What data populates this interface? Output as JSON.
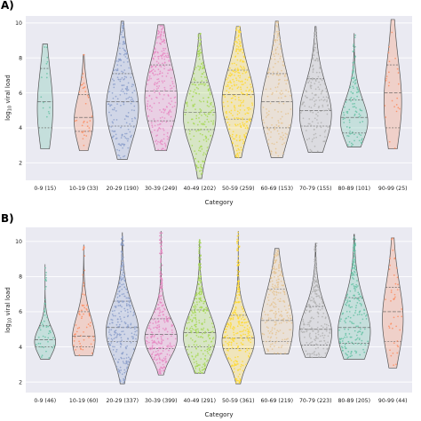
{
  "chart_data": [
    {
      "panel": "A)",
      "type": "violin",
      "xlabel": "Category",
      "ylabel": "log10 viral load",
      "ylim": [
        1,
        10.4
      ],
      "yticks": [
        2,
        4,
        6,
        8,
        10
      ],
      "grid": true,
      "categories": [
        "0-9 (15)",
        "10-19 (33)",
        "20-29 (190)",
        "30-39 (249)",
        "40-49 (202)",
        "50-59 (259)",
        "60-69 (153)",
        "70-79 (155)",
        "80-89 (101)",
        "90-99 (25)"
      ],
      "colors": [
        "#66c2a5",
        "#fc8d62",
        "#8da0cb",
        "#e78ac3",
        "#a6d854",
        "#ffd92f",
        "#e5c494",
        "#b3b3b3",
        "#66c2a5",
        "#fc8d62"
      ],
      "series": [
        {
          "min": 2.8,
          "max": 8.8,
          "q1": 4.0,
          "median": 5.5,
          "q3": 7.4,
          "n": 15
        },
        {
          "min": 2.7,
          "max": 8.2,
          "q1": 3.8,
          "median": 4.6,
          "q3": 5.9,
          "n": 33
        },
        {
          "min": 2.2,
          "max": 10.1,
          "q1": 4.1,
          "median": 5.5,
          "q3": 7.1,
          "n": 190
        },
        {
          "min": 2.7,
          "max": 9.9,
          "q1": 4.4,
          "median": 6.1,
          "q3": 7.6,
          "n": 249
        },
        {
          "min": 1.1,
          "max": 9.4,
          "q1": 3.9,
          "median": 4.9,
          "q3": 6.6,
          "n": 202
        },
        {
          "min": 2.3,
          "max": 9.8,
          "q1": 4.5,
          "median": 5.9,
          "q3": 7.3,
          "n": 259
        },
        {
          "min": 2.3,
          "max": 10.1,
          "q1": 4.0,
          "median": 5.5,
          "q3": 7.1,
          "n": 153
        },
        {
          "min": 2.6,
          "max": 9.8,
          "q1": 4.1,
          "median": 5.0,
          "q3": 6.8,
          "n": 155
        },
        {
          "min": 2.9,
          "max": 9.4,
          "q1": 3.7,
          "median": 4.6,
          "q3": 5.6,
          "n": 101
        },
        {
          "min": 2.8,
          "max": 10.2,
          "q1": 4.0,
          "median": 6.0,
          "q3": 7.6,
          "n": 25
        }
      ]
    },
    {
      "panel": "B)",
      "type": "violin",
      "xlabel": "Category",
      "ylabel": "log10 viral load",
      "ylim": [
        1.4,
        10.8
      ],
      "yticks": [
        2,
        4,
        6,
        8,
        10
      ],
      "grid": true,
      "categories": [
        "0-9 (46)",
        "10-19 (60)",
        "20-29 (337)",
        "30-39 (399)",
        "40-49 (291)",
        "50-59 (361)",
        "60-69 (219)",
        "70-79 (223)",
        "80-89 (205)",
        "90-99 (44)"
      ],
      "colors": [
        "#66c2a5",
        "#fc8d62",
        "#8da0cb",
        "#e78ac3",
        "#a6d854",
        "#ffd92f",
        "#e5c494",
        "#b3b3b3",
        "#66c2a5",
        "#fc8d62"
      ],
      "series": [
        {
          "min": 3.3,
          "max": 8.7,
          "q1": 4.0,
          "median": 4.4,
          "q3": 5.2,
          "n": 46
        },
        {
          "min": 3.5,
          "max": 9.8,
          "q1": 4.0,
          "median": 4.6,
          "q3": 6.0,
          "n": 60
        },
        {
          "min": 1.9,
          "max": 10.5,
          "q1": 4.3,
          "median": 5.1,
          "q3": 6.6,
          "n": 337
        },
        {
          "min": 2.4,
          "max": 10.6,
          "q1": 3.9,
          "median": 4.7,
          "q3": 5.6,
          "n": 399
        },
        {
          "min": 2.5,
          "max": 10.1,
          "q1": 4.0,
          "median": 4.8,
          "q3": 6.1,
          "n": 291
        },
        {
          "min": 1.9,
          "max": 10.6,
          "q1": 3.9,
          "median": 4.5,
          "q3": 5.8,
          "n": 361
        },
        {
          "min": 3.6,
          "max": 9.6,
          "q1": 4.3,
          "median": 5.5,
          "q3": 7.3,
          "n": 219
        },
        {
          "min": 3.4,
          "max": 9.9,
          "q1": 4.1,
          "median": 5.0,
          "q3": 6.3,
          "n": 223
        },
        {
          "min": 3.3,
          "max": 10.4,
          "q1": 4.2,
          "median": 5.1,
          "q3": 6.8,
          "n": 205
        },
        {
          "min": 2.8,
          "max": 10.2,
          "q1": 4.3,
          "median": 6.0,
          "q3": 7.4,
          "n": 44
        }
      ]
    }
  ]
}
